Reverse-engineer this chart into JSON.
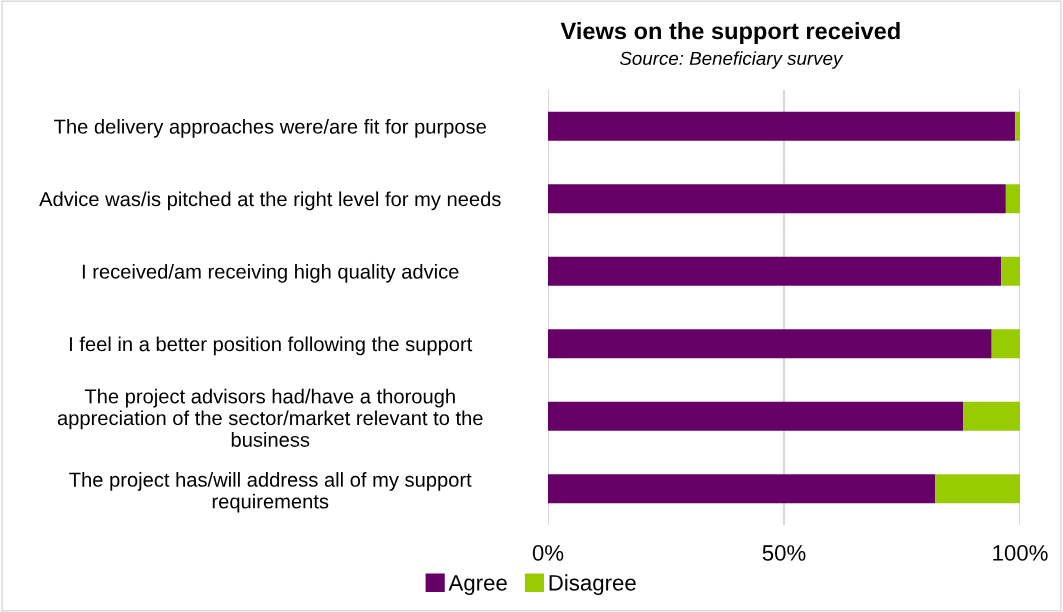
{
  "chart_data": {
    "type": "bar",
    "orientation": "horizontal",
    "stacked": true,
    "title": "Views on the support received",
    "subtitle": "Source: Beneficiary survey",
    "categories": [
      "The delivery approaches were/are fit for purpose",
      "Advice was/is pitched at the right level for my needs",
      "I received/am receiving high quality advice",
      "I feel in a better position following the support",
      "The project advisors had/have a thorough\nappreciation of the sector/market relevant to the\nbusiness",
      "The project has/will address all of my support\nrequirements"
    ],
    "series": [
      {
        "name": "Agree",
        "color": "#660066",
        "values": [
          99,
          97,
          96,
          94,
          88,
          82
        ]
      },
      {
        "name": "Disagree",
        "color": "#99cc00",
        "values": [
          1,
          3,
          4,
          6,
          12,
          18
        ]
      }
    ],
    "xlim": [
      0,
      100
    ],
    "xticks": [
      {
        "value": 0,
        "label": "0%"
      },
      {
        "value": 50,
        "label": "50%"
      },
      {
        "value": 100,
        "label": "100%"
      }
    ],
    "grid": "x",
    "legend": "bottom"
  }
}
